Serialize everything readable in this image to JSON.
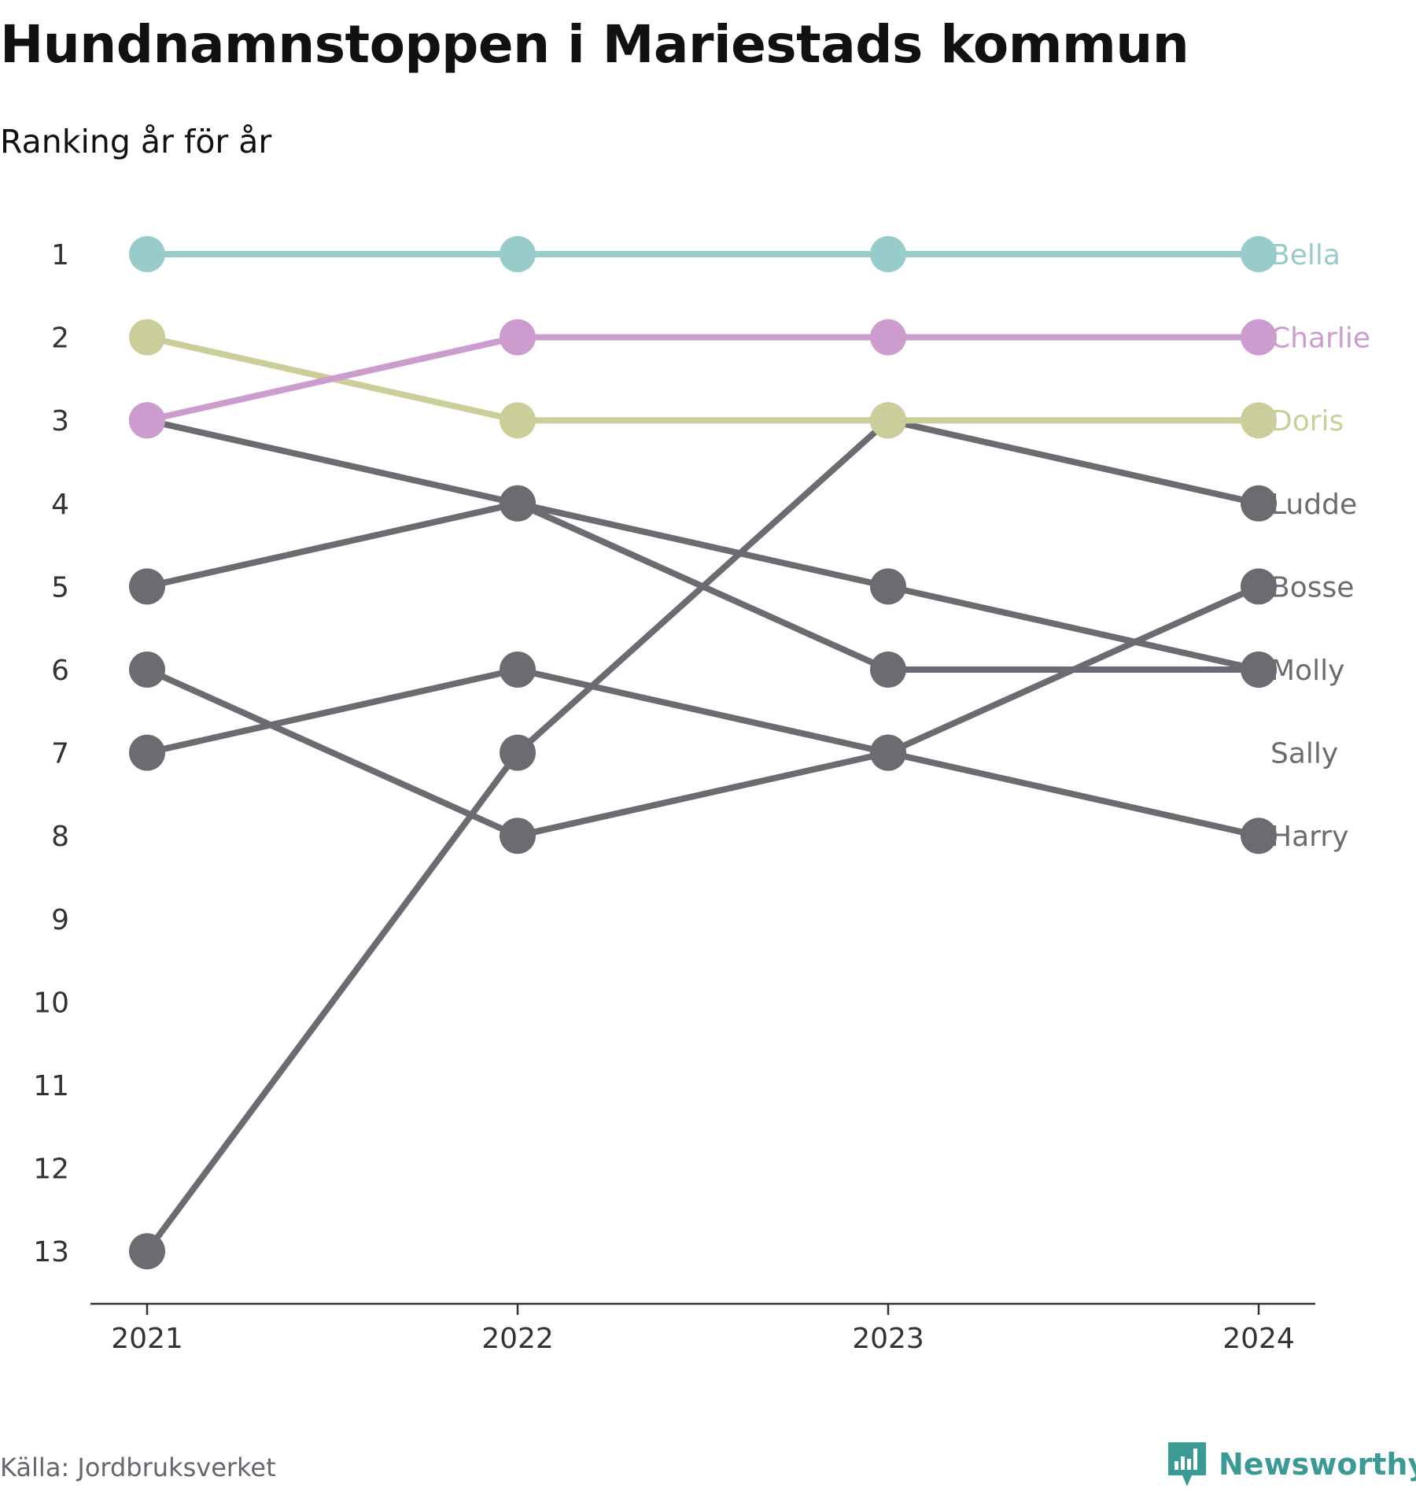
{
  "title": "Hundnamnstoppen i Mariestads kommun",
  "subtitle": "Ranking år för år",
  "source": "Källa: Jordbruksverket",
  "brand": "Newsworthy",
  "colors": {
    "highlight_1": "#98cccb",
    "highlight_2": "#cc9ccf",
    "highlight_3": "#ccce9a",
    "default": "#6b6b72",
    "brand": "#3b9a96"
  },
  "chart_data": {
    "type": "line",
    "x": [
      "2021",
      "2022",
      "2023",
      "2024"
    ],
    "ylim": [
      1,
      13
    ],
    "y_reversed": true,
    "y_ticks": [
      "1",
      "2",
      "3",
      "4",
      "5",
      "6",
      "7",
      "8",
      "9",
      "10",
      "11",
      "12",
      "13"
    ],
    "series": [
      {
        "name": "Bella",
        "values": [
          1,
          1,
          1,
          1
        ],
        "color": "#98cccb"
      },
      {
        "name": "Charlie",
        "values": [
          3,
          2,
          2,
          2
        ],
        "color": "#cc9ccf"
      },
      {
        "name": "Doris",
        "values": [
          2,
          3,
          3,
          3
        ],
        "color": "#ccce9a"
      },
      {
        "name": "Ludde",
        "values": [
          13,
          7,
          3,
          4
        ],
        "color": "#6b6b72"
      },
      {
        "name": "Bosse",
        "values": [
          6,
          8,
          7,
          5
        ],
        "color": "#6b6b72"
      },
      {
        "name": "Molly",
        "values": [
          3,
          4,
          5,
          6
        ],
        "color": "#6b6b72"
      },
      {
        "name": "Sally",
        "values": [
          5,
          4,
          6,
          6
        ],
        "color": "#6b6b72"
      },
      {
        "name": "Harry",
        "values": [
          7,
          6,
          7,
          8
        ],
        "color": "#6b6b72"
      }
    ],
    "end_labels": [
      "Bella",
      "Charlie",
      "Doris",
      "Ludde",
      "Bosse",
      "Molly",
      "Sally",
      "Harry"
    ]
  }
}
